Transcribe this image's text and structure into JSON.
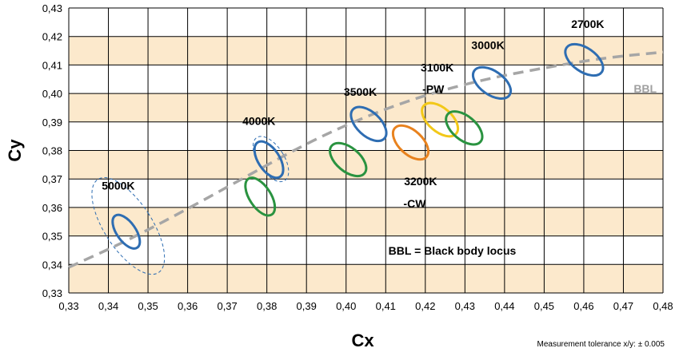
{
  "chart_data": {
    "type": "scatter",
    "xlabel": "Cx",
    "ylabel": "Cy",
    "xlim": [
      0.33,
      0.48
    ],
    "ylim": [
      0.33,
      0.43
    ],
    "x_ticks": [
      "0,33",
      "0,34",
      "0,35",
      "0,36",
      "0,37",
      "0,38",
      "0,39",
      "0,40",
      "0,41",
      "0,42",
      "0,43",
      "0,44",
      "0,45",
      "0,46",
      "0,47",
      "0,48"
    ],
    "y_ticks": [
      "0,33",
      "0,34",
      "0,35",
      "0,36",
      "0,37",
      "0,38",
      "0,39",
      "0,40",
      "0,41",
      "0,42",
      "0,43"
    ],
    "band_color": "#fce9cc",
    "grid": true,
    "bbl_curve": {
      "name": "BBL",
      "color": "#a6a6a6",
      "points": [
        [
          0.33,
          0.339
        ],
        [
          0.345,
          0.3485
        ],
        [
          0.36,
          0.3595
        ],
        [
          0.375,
          0.371
        ],
        [
          0.39,
          0.3825
        ],
        [
          0.405,
          0.392
        ],
        [
          0.42,
          0.3995
        ],
        [
          0.435,
          0.405
        ],
        [
          0.45,
          0.409
        ],
        [
          0.465,
          0.4125
        ],
        [
          0.48,
          0.4145
        ]
      ]
    },
    "ellipses": [
      {
        "color": "#2e6db2",
        "style": "solid",
        "cx": 0.3445,
        "cy": 0.3515,
        "rx": 0.0024,
        "ry": 0.0068,
        "angle": -35
      },
      {
        "color": "#2e6db2",
        "style": "dashed",
        "cx": 0.345,
        "cy": 0.3535,
        "rx": 0.006,
        "ry": 0.0195,
        "angle": -33
      },
      {
        "color": "#2e6db2",
        "style": "solid",
        "cx": 0.3805,
        "cy": 0.3768,
        "rx": 0.0027,
        "ry": 0.0072,
        "angle": -33
      },
      {
        "color": "#2e6db2",
        "style": "dashed",
        "cx": 0.381,
        "cy": 0.377,
        "rx": 0.0033,
        "ry": 0.009,
        "angle": -33
      },
      {
        "color": "#2a9340",
        "style": "solid",
        "cx": 0.3783,
        "cy": 0.3638,
        "rx": 0.0027,
        "ry": 0.0075,
        "angle": -33
      },
      {
        "color": "#2e6db2",
        "style": "solid",
        "cx": 0.4057,
        "cy": 0.3893,
        "rx": 0.003,
        "ry": 0.0075,
        "angle": -47
      },
      {
        "color": "#2a9340",
        "style": "solid",
        "cx": 0.4005,
        "cy": 0.3768,
        "rx": 0.003,
        "ry": 0.0075,
        "angle": -50
      },
      {
        "color": "#e8821e",
        "style": "solid",
        "cx": 0.4163,
        "cy": 0.3828,
        "rx": 0.003,
        "ry": 0.0075,
        "angle": -47
      },
      {
        "color": "#f2c818",
        "style": "solid",
        "cx": 0.4237,
        "cy": 0.3908,
        "rx": 0.003,
        "ry": 0.0075,
        "angle": -49
      },
      {
        "color": "#2a9340",
        "style": "solid",
        "cx": 0.4298,
        "cy": 0.3879,
        "rx": 0.003,
        "ry": 0.0075,
        "angle": -50
      },
      {
        "color": "#2e6db2",
        "style": "solid",
        "cx": 0.4368,
        "cy": 0.4037,
        "rx": 0.003,
        "ry": 0.0075,
        "angle": -55
      },
      {
        "color": "#2e6db2",
        "style": "solid",
        "cx": 0.4601,
        "cy": 0.4118,
        "rx": 0.003,
        "ry": 0.0075,
        "angle": -55
      }
    ],
    "annotations": [
      {
        "text": "5000K",
        "x": 0.3425,
        "y": 0.3677
      },
      {
        "text": "4000K",
        "x": 0.378,
        "y": 0.3903
      },
      {
        "text": "3500K",
        "x": 0.4036,
        "y": 0.4006
      },
      {
        "text": "3100K",
        "x": 0.423,
        "y": 0.4091
      },
      {
        "text": "-PW",
        "x": 0.422,
        "y": 0.4016
      },
      {
        "text": "3000K",
        "x": 0.4358,
        "y": 0.417
      },
      {
        "text": "2700K",
        "x": 0.461,
        "y": 0.4244
      },
      {
        "text": "3200K",
        "x": 0.4188,
        "y": 0.3692
      },
      {
        "text": "-CW",
        "x": 0.4173,
        "y": 0.3614
      },
      {
        "text": "BBL = Black body locus",
        "x": 0.4268,
        "y": 0.3449
      }
    ],
    "bbl_label": {
      "text": "BBL",
      "x": 0.4755,
      "y": 0.4017
    },
    "tolerance_note": "Measurement tolerance x/y: ± 0.005"
  }
}
